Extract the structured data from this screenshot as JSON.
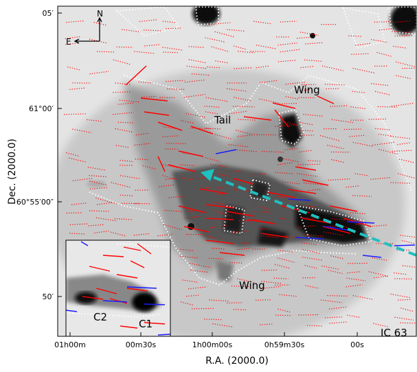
{
  "title": "IC 63",
  "x_axis": {
    "label": "R.A. (2000.0)",
    "ticks": [
      "01h00m",
      "00m30s",
      "1h00m00s",
      "0h59m30s",
      "00s"
    ]
  },
  "y_axis": {
    "label": "Dec. (2000.0)",
    "ticks": [
      "05′",
      "61°00′",
      "60°55′00″",
      "50′"
    ]
  },
  "compass": {
    "north": "N",
    "east": "E"
  },
  "annotations": {
    "wing_top": "Wing",
    "tail": "Tail",
    "wing_bottom": "Wing",
    "c1": "C1",
    "c2": "C2"
  },
  "colors": {
    "polarization_optical": "#ff0000",
    "polarization_special": "#1a1aff",
    "motion_arrow": "#20c0c0",
    "contour": "#ffffff"
  }
}
